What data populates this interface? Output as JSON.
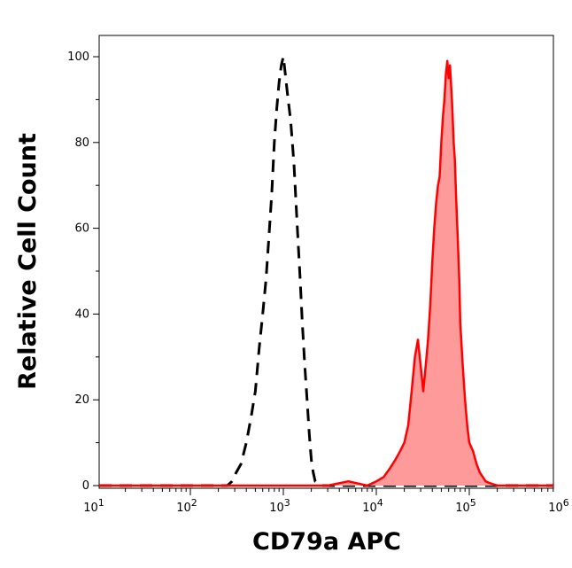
{
  "chart_data": {
    "type": "area",
    "xlabel": "CD79a APC",
    "ylabel": "Relative Cell Count",
    "x_scale": "log",
    "xlim": [
      7,
      1200000
    ],
    "ylim": [
      0,
      105
    ],
    "x_ticks": [
      {
        "value": 10,
        "base": "10",
        "exp": "1"
      },
      {
        "value": 100,
        "base": "10",
        "exp": "2"
      },
      {
        "value": 1000,
        "base": "10",
        "exp": "3"
      },
      {
        "value": 10000,
        "base": "10",
        "exp": "4"
      },
      {
        "value": 100000,
        "base": "10",
        "exp": "5"
      },
      {
        "value": 1000000,
        "base": "10",
        "exp": "6"
      }
    ],
    "y_ticks": [
      0,
      20,
      40,
      60,
      80,
      100
    ],
    "grid": false,
    "legend": "none",
    "colors": {
      "control": "#000000",
      "stained_line": "#ff0000",
      "stained_fill": "#ff9a9a"
    },
    "series": [
      {
        "style": "dashed-black",
        "x": [
          7,
          50,
          150,
          200,
          250,
          280,
          310,
          350,
          400,
          450,
          500,
          550,
          600,
          650,
          700,
          750,
          800,
          850,
          900,
          950,
          1000,
          1050,
          1100,
          1200,
          1300,
          1400,
          1500,
          1600,
          1700,
          1800,
          1900,
          2000,
          2100,
          2200,
          2400,
          2600,
          3000,
          10000,
          1200000
        ],
        "y": [
          0,
          0,
          0,
          0,
          0,
          1,
          3,
          5,
          10,
          16,
          22,
          32,
          40,
          48,
          58,
          68,
          80,
          88,
          94,
          98,
          100,
          96,
          92,
          85,
          75,
          62,
          50,
          38,
          28,
          20,
          12,
          6,
          3,
          1,
          0.5,
          0,
          0,
          0,
          0
        ]
      },
      {
        "style": "filled-red",
        "x": [
          7,
          3000,
          5000,
          8000,
          10000,
          12000,
          14000,
          16000,
          18000,
          20000,
          22000,
          24000,
          26000,
          28000,
          30000,
          32000,
          34000,
          36000,
          38000,
          40000,
          42000,
          44000,
          46000,
          48000,
          50000,
          52000,
          54000,
          56000,
          58000,
          60000,
          62000,
          65000,
          68000,
          70000,
          72000,
          75000,
          78000,
          80000,
          85000,
          90000,
          95000,
          100000,
          110000,
          120000,
          130000,
          140000,
          150000,
          170000,
          200000,
          300000,
          1200000
        ],
        "y": [
          0,
          0,
          1,
          0,
          1,
          2,
          4,
          6,
          8,
          10,
          14,
          22,
          30,
          34,
          28,
          22,
          28,
          34,
          42,
          52,
          60,
          66,
          70,
          72,
          80,
          86,
          90,
          96,
          99,
          95,
          98,
          90,
          80,
          76,
          68,
          58,
          48,
          38,
          28,
          20,
          14,
          10,
          8,
          5,
          3,
          2,
          1,
          0.5,
          0,
          0,
          0
        ]
      }
    ]
  }
}
